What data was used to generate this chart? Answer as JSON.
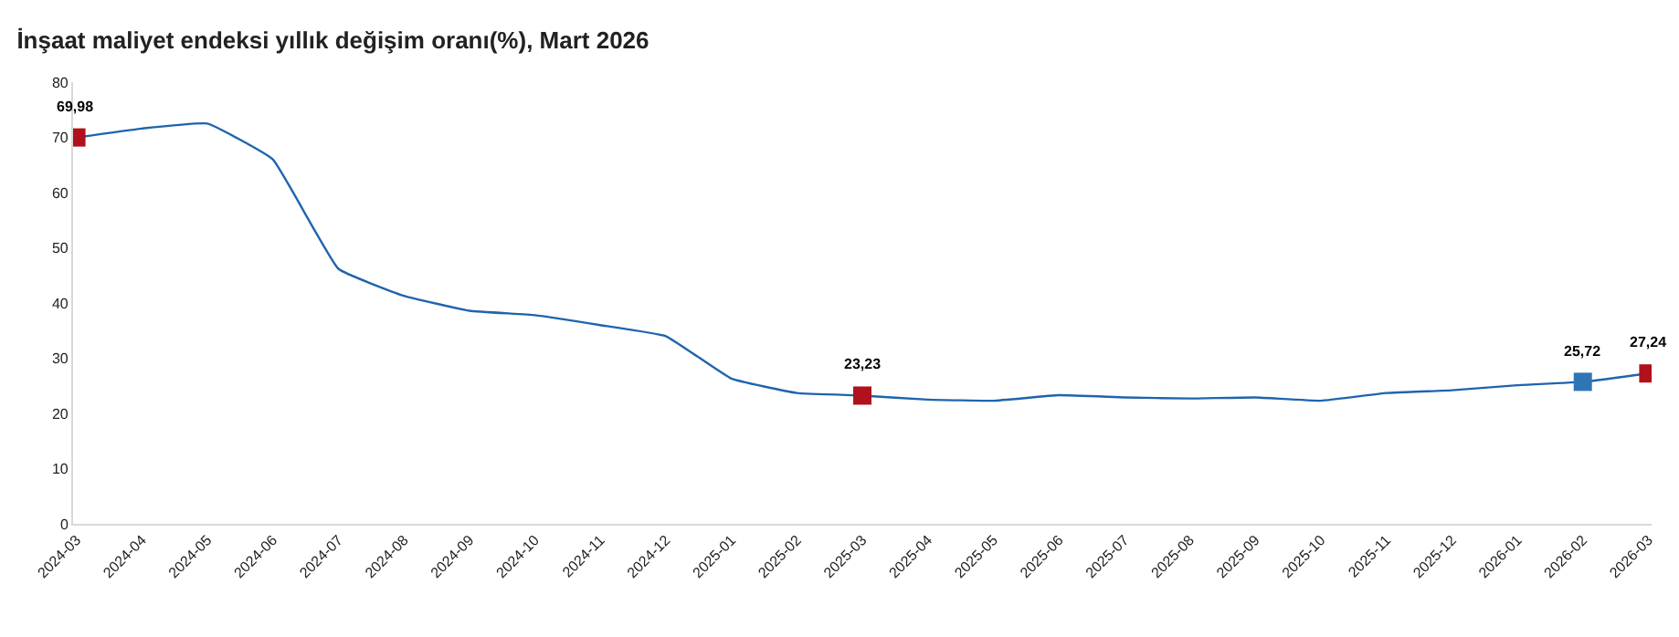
{
  "chart_data": {
    "type": "line",
    "title": "İnşaat maliyet endeksi yıllık değişim oranı(%), Mart 2026",
    "categories": [
      "2024-03",
      "2024-04",
      "2024-05",
      "2024-06",
      "2024-07",
      "2024-08",
      "2024-09",
      "2024-10",
      "2024-11",
      "2024-12",
      "2025-01",
      "2025-02",
      "2025-03",
      "2025-04",
      "2025-05",
      "2025-06",
      "2025-07",
      "2025-08",
      "2025-09",
      "2025-10",
      "2025-11",
      "2025-12",
      "2026-01",
      "2026-02",
      "2026-03"
    ],
    "series": [
      {
        "color": "#1f64ad",
        "marker": "none",
        "values": [
          69.98,
          71.6,
          72.5,
          66.0,
          46.2,
          41.3,
          38.6,
          37.8,
          36.0,
          34.0,
          26.3,
          23.7,
          23.23,
          22.5,
          22.3,
          23.3,
          22.9,
          22.7,
          22.9,
          22.3,
          23.7,
          24.2,
          25.1,
          25.72,
          27.24
        ]
      },
      {
        "type": "scatter",
        "marker": "square",
        "color": "#b0111b",
        "values": [
          69.98,
          null,
          null,
          null,
          null,
          null,
          null,
          null,
          null,
          null,
          null,
          null,
          23.23,
          null,
          null,
          null,
          null,
          null,
          null,
          null,
          null,
          null,
          null,
          25.72,
          27.24
        ],
        "colors": [
          "#b0111b",
          null,
          null,
          null,
          null,
          null,
          null,
          null,
          null,
          null,
          null,
          null,
          "#b0111b",
          null,
          null,
          null,
          null,
          null,
          null,
          null,
          null,
          null,
          null,
          "#2e75b6",
          "#b0111b"
        ],
        "value_labels": [
          "69,98",
          null,
          null,
          null,
          null,
          null,
          null,
          null,
          null,
          null,
          null,
          null,
          "23,23",
          null,
          null,
          null,
          null,
          null,
          null,
          null,
          null,
          null,
          null,
          "25,72",
          "27,24"
        ]
      }
    ],
    "ylim": [
      0,
      80
    ],
    "yticks": [
      0,
      10,
      20,
      30,
      40,
      50,
      60,
      70,
      80
    ]
  }
}
